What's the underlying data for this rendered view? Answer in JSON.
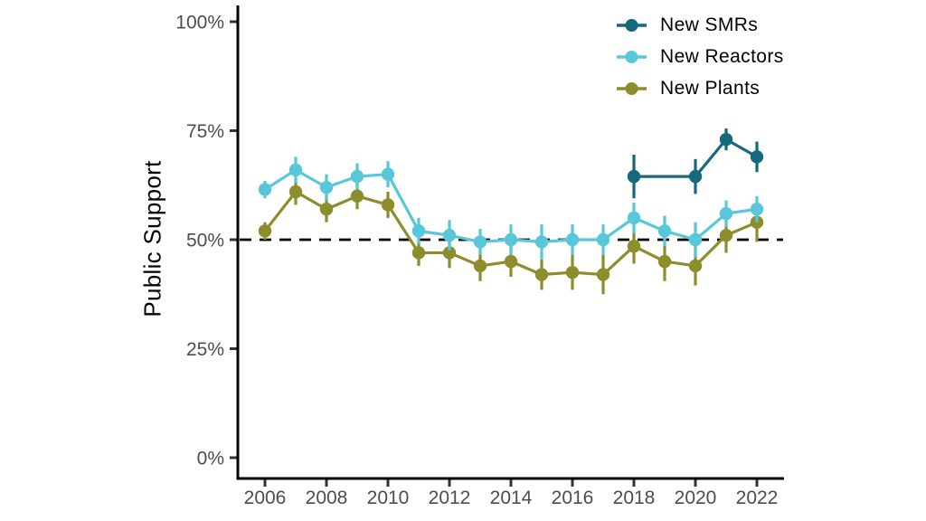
{
  "chart_data": {
    "type": "line",
    "title": "",
    "xlabel": "",
    "ylabel": "Public Support",
    "ylim": [
      0,
      100
    ],
    "xlim": [
      2005,
      2023
    ],
    "grid": false,
    "legend_position": "top-right",
    "y_ticks": [
      {
        "value": 0,
        "label": "0%"
      },
      {
        "value": 25,
        "label": "25%"
      },
      {
        "value": 50,
        "label": "50%"
      },
      {
        "value": 75,
        "label": "75%"
      },
      {
        "value": 100,
        "label": "100%"
      }
    ],
    "x_ticks": [
      {
        "value": 2006,
        "label": "2006"
      },
      {
        "value": 2008,
        "label": "2008"
      },
      {
        "value": 2010,
        "label": "2010"
      },
      {
        "value": 2012,
        "label": "2012"
      },
      {
        "value": 2014,
        "label": "2014"
      },
      {
        "value": 2016,
        "label": "2016"
      },
      {
        "value": 2018,
        "label": "2018"
      },
      {
        "value": 2020,
        "label": "2020"
      },
      {
        "value": 2022,
        "label": "2022"
      }
    ],
    "reference_line": {
      "value": 50,
      "style": "dashed",
      "color": "#000000"
    },
    "axis_color": "#000000",
    "tick_label_color": "#4d4d4d",
    "series": [
      {
        "name": "New SMRs",
        "color": "#15697c",
        "points": [
          {
            "x": 2018,
            "y": 64.5,
            "err": 5.0
          },
          {
            "x": 2020,
            "y": 64.5,
            "err": 4.0
          },
          {
            "x": 2021,
            "y": 73.0,
            "err": 2.5
          },
          {
            "x": 2022,
            "y": 69.0,
            "err": 3.5
          }
        ]
      },
      {
        "name": "New Reactors",
        "color": "#58c7d9",
        "points": [
          {
            "x": 2006,
            "y": 61.5,
            "err": 2.0
          },
          {
            "x": 2007,
            "y": 66.0,
            "err": 3.0
          },
          {
            "x": 2008,
            "y": 62.0,
            "err": 3.0
          },
          {
            "x": 2009,
            "y": 64.5,
            "err": 3.0
          },
          {
            "x": 2010,
            "y": 65.0,
            "err": 3.0
          },
          {
            "x": 2011,
            "y": 52.0,
            "err": 3.0
          },
          {
            "x": 2012,
            "y": 51.0,
            "err": 3.5
          },
          {
            "x": 2013,
            "y": 49.5,
            "err": 3.0
          },
          {
            "x": 2014,
            "y": 50.0,
            "err": 3.5
          },
          {
            "x": 2015,
            "y": 49.5,
            "err": 4.0
          },
          {
            "x": 2016,
            "y": 50.0,
            "err": 3.5
          },
          {
            "x": 2017,
            "y": 50.0,
            "err": 3.5
          },
          {
            "x": 2018,
            "y": 55.0,
            "err": 3.5
          },
          {
            "x": 2019,
            "y": 52.0,
            "err": 3.5
          },
          {
            "x": 2020,
            "y": 50.0,
            "err": 4.0
          },
          {
            "x": 2021,
            "y": 56.0,
            "err": 3.0
          },
          {
            "x": 2022,
            "y": 57.0,
            "err": 3.0
          }
        ]
      },
      {
        "name": "New Plants",
        "color": "#8e8d2b",
        "points": [
          {
            "x": 2006,
            "y": 52.0,
            "err": 2.0
          },
          {
            "x": 2007,
            "y": 61.0,
            "err": 3.0
          },
          {
            "x": 2008,
            "y": 57.0,
            "err": 3.0
          },
          {
            "x": 2009,
            "y": 60.0,
            "err": 3.0
          },
          {
            "x": 2010,
            "y": 58.0,
            "err": 3.0
          },
          {
            "x": 2011,
            "y": 47.0,
            "err": 3.0
          },
          {
            "x": 2012,
            "y": 47.0,
            "err": 3.5
          },
          {
            "x": 2013,
            "y": 44.0,
            "err": 3.5
          },
          {
            "x": 2014,
            "y": 45.0,
            "err": 3.5
          },
          {
            "x": 2015,
            "y": 42.0,
            "err": 3.5
          },
          {
            "x": 2016,
            "y": 42.5,
            "err": 4.0
          },
          {
            "x": 2017,
            "y": 42.0,
            "err": 4.5
          },
          {
            "x": 2018,
            "y": 48.5,
            "err": 4.0
          },
          {
            "x": 2019,
            "y": 45.0,
            "err": 4.5
          },
          {
            "x": 2020,
            "y": 44.0,
            "err": 4.5
          },
          {
            "x": 2021,
            "y": 51.0,
            "err": 4.0
          },
          {
            "x": 2022,
            "y": 54.0,
            "err": 4.5
          }
        ]
      }
    ]
  }
}
